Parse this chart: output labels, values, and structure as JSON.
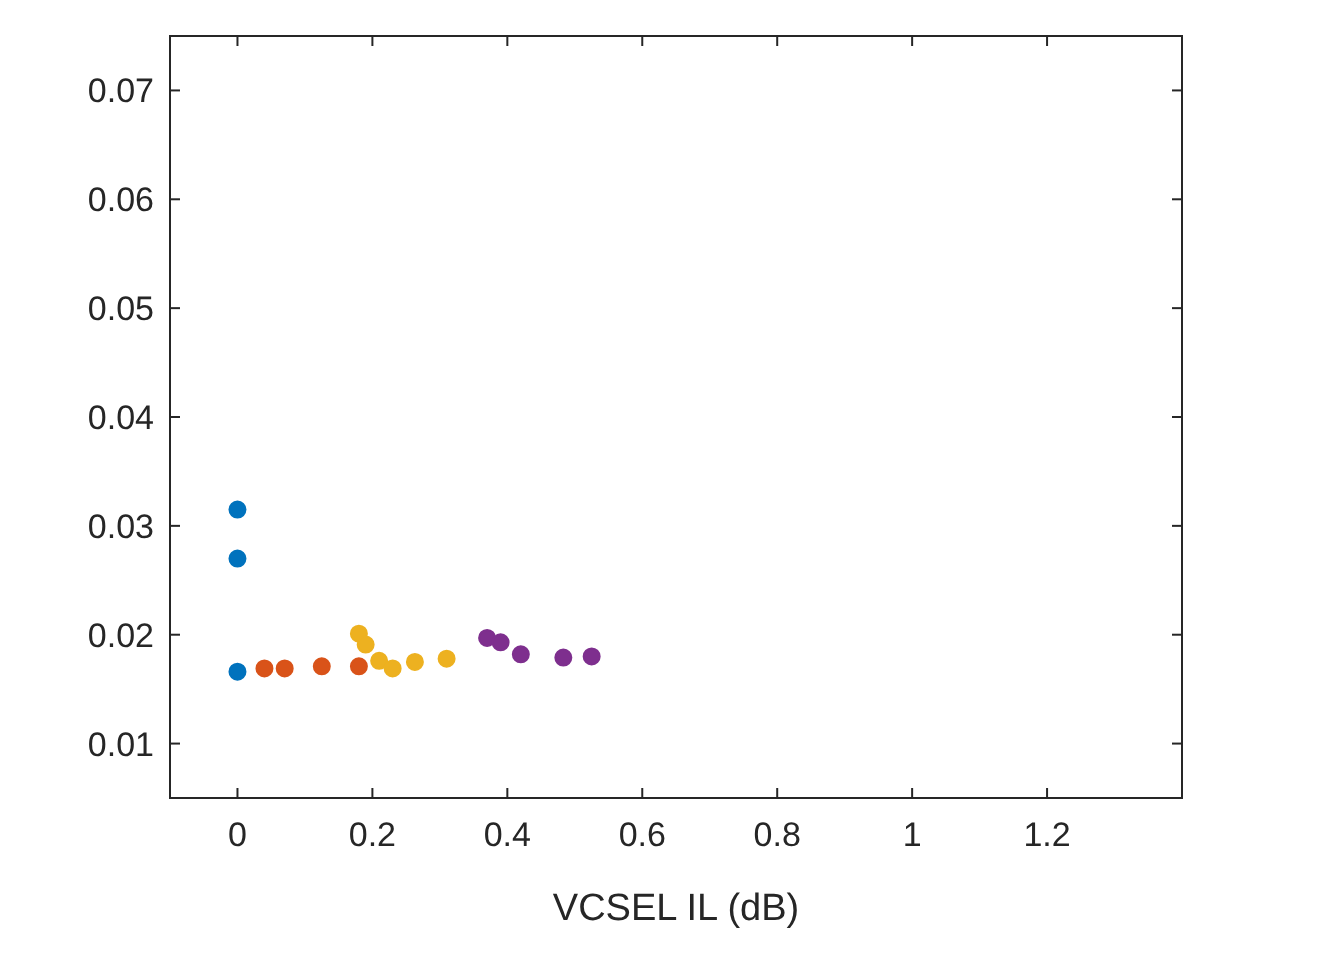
{
  "chart_data": {
    "type": "scatter",
    "xlabel": "VCSEL IL (dB)",
    "xlim": [
      -0.1,
      1.4
    ],
    "ylim": [
      0.005,
      0.075
    ],
    "xticks": [
      0,
      0.2,
      0.4,
      0.6,
      0.8,
      1,
      1.2
    ],
    "yticks": [
      0.01,
      0.02,
      0.03,
      0.04,
      0.05,
      0.06,
      0.07
    ],
    "grid": false,
    "marker": "circle",
    "series": [
      {
        "color": "#0072bd",
        "x": [
          0,
          0,
          0
        ],
        "values": [
          0.0315,
          0.027,
          0.0166
        ]
      },
      {
        "color": "#d95319",
        "x": [
          0.04,
          0.07,
          0.125,
          0.18
        ],
        "values": [
          0.0169,
          0.0169,
          0.0171,
          0.0171
        ]
      },
      {
        "color": "#edb120",
        "x": [
          0.18,
          0.19,
          0.21,
          0.23,
          0.263,
          0.31
        ],
        "values": [
          0.0201,
          0.0191,
          0.0176,
          0.0169,
          0.0175,
          0.0178
        ]
      },
      {
        "color": "#7e2f8e",
        "x": [
          0.37,
          0.39,
          0.42,
          0.483,
          0.525
        ],
        "values": [
          0.0197,
          0.0193,
          0.0182,
          0.0179,
          0.018
        ]
      }
    ]
  }
}
